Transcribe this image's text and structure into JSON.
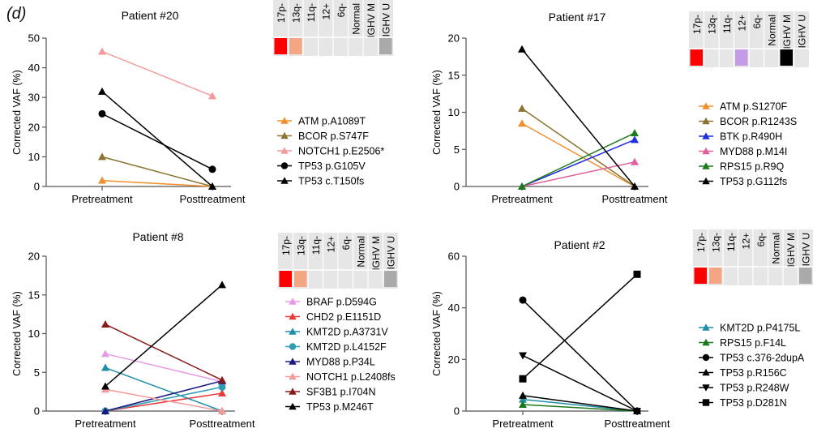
{
  "figure": {
    "panel_label": "(d)"
  },
  "karyotype_columns": [
    "17p-",
    "13q-",
    "11q-",
    "12+",
    "6q-",
    "Normal",
    "IGHV M",
    "IGHV U"
  ],
  "chart_data": [
    {
      "type": "line",
      "title": "Patient #20",
      "xlabel": "",
      "ylabel": "Corrected VAF (%)",
      "categories": [
        "Pretreatment",
        "Posttreatment"
      ],
      "ylim": [
        0,
        50
      ],
      "yticks": [
        0,
        10,
        20,
        30,
        40,
        50
      ],
      "markers": [
        "#ff0000",
        "#f4a582",
        null,
        null,
        null,
        null,
        null,
        "#aaaaaa"
      ],
      "series": [
        {
          "name": "ATM p.A1089T",
          "values": [
            2,
            0
          ],
          "color": "#f28e2b",
          "marker": "triangle-up"
        },
        {
          "name": "BCOR p.S747F",
          "values": [
            10,
            0
          ],
          "color": "#8b7332",
          "marker": "triangle-up"
        },
        {
          "name": "NOTCH1 p.E2506*",
          "values": [
            45.5,
            30.5
          ],
          "color": "#f49a9a",
          "marker": "triangle-up"
        },
        {
          "name": "TP53 p.G105V",
          "values": [
            24.5,
            5.8
          ],
          "color": "#000000",
          "marker": "circle"
        },
        {
          "name": "TP53 c.T150fs",
          "values": [
            32,
            0
          ],
          "color": "#000000",
          "marker": "triangle-up"
        }
      ]
    },
    {
      "type": "line",
      "title": "Patient #17",
      "xlabel": "",
      "ylabel": "Corrected VAF (%)",
      "categories": [
        "Pretreatment",
        "Posttreatment"
      ],
      "ylim": [
        0,
        20
      ],
      "yticks": [
        0,
        5,
        10,
        15,
        20
      ],
      "markers": [
        "#ff0000",
        null,
        null,
        "#c39be6",
        null,
        null,
        "#000000",
        null
      ],
      "series": [
        {
          "name": "ATM p.S1270F",
          "values": [
            8.5,
            0
          ],
          "color": "#f28e2b",
          "marker": "triangle-up"
        },
        {
          "name": "BCOR p.R1243S",
          "values": [
            10.5,
            0
          ],
          "color": "#8b7332",
          "marker": "triangle-up"
        },
        {
          "name": "BTK p.R490H",
          "values": [
            0,
            6.3
          ],
          "color": "#1f2fdd",
          "marker": "triangle-up"
        },
        {
          "name": "MYD88 p.M14I",
          "values": [
            0,
            3.3
          ],
          "color": "#e0609a",
          "marker": "triangle-up"
        },
        {
          "name": "RPS15 p.R9Q",
          "values": [
            0,
            7.2
          ],
          "color": "#1b7a1b",
          "marker": "triangle-up"
        },
        {
          "name": "TP53 p.G112fs",
          "values": [
            18.5,
            0
          ],
          "color": "#000000",
          "marker": "triangle-up"
        }
      ]
    },
    {
      "type": "line",
      "title": "Patient #8",
      "xlabel": "",
      "ylabel": "Corrected VAF (%)",
      "categories": [
        "Pretreatment",
        "Posttreatment"
      ],
      "ylim": [
        0,
        20
      ],
      "yticks": [
        0,
        5,
        10,
        15,
        20
      ],
      "markers": [
        "#ff0000",
        "#f4a582",
        null,
        null,
        null,
        null,
        null,
        "#aaaaaa"
      ],
      "series": [
        {
          "name": "BRAF p.D594G",
          "values": [
            7.4,
            3.8
          ],
          "color": "#e89ae8",
          "marker": "triangle-up"
        },
        {
          "name": "CHD2 p.E1151D",
          "values": [
            0,
            2.3
          ],
          "color": "#e83b3b",
          "marker": "triangle-up"
        },
        {
          "name": "KMT2D p.A3731V",
          "values": [
            5.6,
            0
          ],
          "color": "#1f8ea8",
          "marker": "triangle-up"
        },
        {
          "name": "KMT2D p.L4152F",
          "values": [
            0,
            3.1
          ],
          "color": "#2e9db5",
          "marker": "circle"
        },
        {
          "name": "MYD88 p.P34L",
          "values": [
            0,
            3.9
          ],
          "color": "#1a1a80",
          "marker": "triangle-up"
        },
        {
          "name": "NOTCH1 p.L2408fs",
          "values": [
            2.8,
            0
          ],
          "color": "#f49a9a",
          "marker": "triangle-up"
        },
        {
          "name": "SF3B1 p.I704N",
          "values": [
            11.2,
            4
          ],
          "color": "#8b1a1a",
          "marker": "triangle-up"
        },
        {
          "name": "TP53 p.M246T",
          "values": [
            3.2,
            16.3
          ],
          "color": "#000000",
          "marker": "triangle-up"
        }
      ]
    },
    {
      "type": "line",
      "title": "Patient #2",
      "xlabel": "",
      "ylabel": "Corrected VAF (%)",
      "categories": [
        "Pretreatment",
        "Posttreatment"
      ],
      "ylim": [
        0,
        60
      ],
      "yticks": [
        0,
        20,
        40,
        60
      ],
      "markers": [
        "#ff0000",
        "#f4a582",
        null,
        null,
        null,
        null,
        null,
        "#aaaaaa"
      ],
      "series": [
        {
          "name": "KMT2D p.P4175L",
          "values": [
            4.5,
            0
          ],
          "color": "#1f8ea8",
          "marker": "triangle-up"
        },
        {
          "name": "RPS15 p.F14L",
          "values": [
            2.5,
            0
          ],
          "color": "#1b7a1b",
          "marker": "triangle-up"
        },
        {
          "name": "TP53 c.376-2dupA",
          "values": [
            43,
            0
          ],
          "color": "#000000",
          "marker": "circle"
        },
        {
          "name": "TP53 p.R156C",
          "values": [
            6,
            0
          ],
          "color": "#000000",
          "marker": "triangle-up"
        },
        {
          "name": "TP53 p.R248W",
          "values": [
            21.5,
            0
          ],
          "color": "#000000",
          "marker": "triangle-down"
        },
        {
          "name": "TP53 p.D281N",
          "values": [
            12.5,
            53
          ],
          "color": "#000000",
          "marker": "square",
          "extra_line_color": "#e83b3b"
        }
      ]
    }
  ]
}
